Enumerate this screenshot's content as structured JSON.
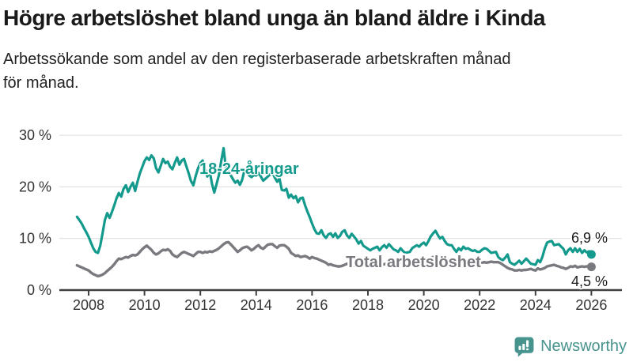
{
  "header": {
    "title": "Högre arbetslöshet bland unga än bland äldre i Kinda",
    "subtitle_line1": "Arbetssökande som andel av den registerbaserade arbetskraften månad",
    "subtitle_line2": "för månad."
  },
  "chart_data": {
    "type": "line",
    "title": "Högre arbetslöshet bland unga än bland äldre i Kinda",
    "subtitle": "Arbetssökande som andel av den registerbaserade arbetskraften månad för månad.",
    "x_start_decimal_year": 2007.5833,
    "x_step_months": 1,
    "x_end_decimal_year": 2026.0,
    "xlim": [
      2006.95,
      2027.1
    ],
    "ylim": [
      0,
      30
    ],
    "grid": "horizontal",
    "grid_color": "#dcdcdc",
    "axis_color": "#404040",
    "tick_label_color": "#333333",
    "x_ticks": [
      {
        "value": 2008,
        "label": "2008"
      },
      {
        "value": 2010,
        "label": "2010"
      },
      {
        "value": 2012,
        "label": "2012"
      },
      {
        "value": 2014,
        "label": "2014"
      },
      {
        "value": 2016,
        "label": "2016"
      },
      {
        "value": 2018,
        "label": "2018"
      },
      {
        "value": 2020,
        "label": "2020"
      },
      {
        "value": 2022,
        "label": "2022"
      },
      {
        "value": 2024,
        "label": "2024"
      },
      {
        "value": 2026,
        "label": "2026"
      }
    ],
    "y_ticks": [
      {
        "value": 0,
        "label": "0 %"
      },
      {
        "value": 10,
        "label": "10 %"
      },
      {
        "value": 20,
        "label": "20 %"
      },
      {
        "value": 30,
        "label": "30 %"
      }
    ],
    "series": [
      {
        "name": "18-24-åringar",
        "color": "#149a8d",
        "end_value": 6.9,
        "end_label": "6,9 %",
        "values": [
          14.2,
          13.6,
          12.9,
          12.0,
          11.2,
          10.3,
          9.2,
          8.1,
          7.4,
          7.2,
          8.6,
          11.0,
          13.6,
          14.9,
          14.0,
          15.1,
          16.4,
          17.8,
          18.8,
          18.1,
          19.6,
          20.3,
          19.0,
          20.0,
          20.8,
          19.2,
          21.0,
          22.6,
          23.8,
          25.0,
          25.7,
          25.2,
          26.1,
          25.5,
          23.6,
          22.8,
          24.1,
          25.4,
          24.6,
          24.9,
          23.9,
          23.4,
          24.6,
          25.7,
          24.3,
          25.1,
          25.4,
          24.0,
          22.6,
          21.1,
          20.3,
          22.1,
          23.6,
          24.6,
          25.1,
          23.6,
          22.0,
          23.1,
          20.6,
          18.9,
          20.6,
          22.3,
          25.1,
          27.5,
          23.4,
          23.0,
          22.3,
          21.5,
          20.8,
          21.2,
          20.4,
          21.4,
          23.3,
          23.0,
          22.2,
          21.9,
          22.3,
          22.2,
          22.7,
          22.0,
          21.2,
          21.6,
          22.0,
          22.4,
          22.7,
          21.8,
          21.0,
          21.6,
          19.4,
          19.3,
          19.6,
          17.9,
          18.5,
          17.8,
          18.2,
          17.0,
          17.8,
          17.9,
          16.4,
          15.2,
          14.1,
          12.9,
          11.8,
          11.0,
          10.9,
          11.6,
          10.6,
          10.1,
          10.8,
          11.0,
          10.3,
          11.0,
          10.1,
          10.5,
          11.3,
          11.6,
          10.6,
          10.1,
          10.9,
          10.4,
          9.8,
          9.0,
          9.5,
          8.6,
          8.3,
          8.0,
          7.7,
          8.0,
          8.2,
          8.4,
          7.7,
          8.3,
          8.7,
          8.2,
          8.9,
          8.4,
          7.9,
          7.7,
          7.4,
          8.1,
          7.6,
          7.2,
          7.3,
          7.4,
          8.1,
          8.4,
          8.7,
          8.4,
          8.9,
          9.2,
          8.7,
          9.5,
          10.4,
          11.0,
          11.5,
          10.7,
          10.0,
          10.3,
          9.5,
          8.9,
          8.7,
          8.7,
          8.0,
          7.4,
          8.1,
          7.7,
          8.4,
          8.0,
          8.1,
          7.8,
          7.6,
          7.7,
          7.4,
          7.4,
          7.8,
          8.1,
          8.0,
          7.6,
          7.2,
          7.3,
          7.4,
          6.4,
          6.0,
          5.8,
          6.3,
          6.9,
          5.4,
          5.1,
          4.9,
          5.3,
          5.7,
          5.1,
          5.6,
          6.1,
          5.6,
          5.1,
          5.0,
          4.9,
          5.8,
          5.4,
          6.5,
          8.1,
          9.2,
          9.4,
          9.5,
          8.7,
          8.8,
          8.9,
          8.4,
          8.0,
          6.9,
          7.7,
          8.1,
          7.4,
          8.1,
          7.4,
          8.0,
          7.2,
          7.7,
          7.3,
          7.5,
          6.9
        ]
      },
      {
        "name": "Total arbetslöshet",
        "color": "#797980",
        "end_value": 4.5,
        "end_label": "4,5 %",
        "values": [
          4.8,
          4.6,
          4.4,
          4.2,
          4.0,
          3.8,
          3.4,
          3.1,
          2.9,
          2.7,
          2.8,
          3.0,
          3.3,
          3.7,
          4.1,
          4.5,
          5.0,
          5.6,
          6.1,
          6.0,
          6.2,
          6.4,
          6.3,
          6.6,
          6.8,
          6.7,
          6.9,
          7.4,
          7.9,
          8.3,
          8.6,
          8.2,
          7.8,
          7.2,
          6.9,
          7.1,
          7.5,
          7.8,
          7.7,
          7.9,
          7.6,
          6.9,
          6.6,
          6.4,
          6.8,
          7.2,
          7.4,
          7.2,
          7.0,
          6.8,
          6.6,
          7.0,
          7.4,
          7.4,
          7.2,
          7.4,
          7.3,
          7.5,
          7.4,
          7.6,
          7.8,
          8.1,
          8.5,
          8.9,
          9.2,
          9.3,
          8.9,
          8.4,
          7.9,
          7.4,
          7.7,
          8.1,
          8.3,
          8.4,
          8.1,
          7.7,
          8.0,
          8.4,
          8.7,
          8.2,
          8.0,
          8.4,
          8.8,
          8.9,
          8.9,
          8.5,
          8.2,
          8.6,
          8.7,
          8.7,
          8.4,
          8.0,
          7.2,
          6.9,
          6.6,
          6.7,
          6.4,
          6.5,
          6.6,
          6.4,
          6.1,
          6.4,
          6.2,
          6.1,
          5.9,
          5.7,
          5.5,
          5.3,
          4.9,
          5.0,
          4.8,
          4.7,
          4.6,
          4.6,
          4.7,
          4.9,
          5.1,
          4.9,
          4.8,
          4.7,
          4.7,
          4.8,
          4.9,
          4.8,
          4.8,
          4.9,
          5.0,
          5.1,
          5.0,
          4.9,
          4.8,
          4.9,
          5.0,
          5.1,
          5.0,
          4.9,
          4.9,
          5.0,
          5.1,
          5.2,
          5.1,
          5.0,
          5.0,
          5.1,
          5.2,
          5.3,
          5.4,
          5.5,
          5.6,
          5.7,
          5.8,
          6.0,
          6.2,
          6.4,
          6.5,
          6.4,
          6.3,
          6.2,
          6.1,
          6.0,
          5.9,
          5.8,
          5.7,
          5.6,
          5.6,
          5.5,
          5.5,
          5.4,
          5.4,
          5.3,
          5.3,
          5.3,
          5.3,
          5.3,
          5.3,
          5.4,
          5.3,
          5.4,
          5.5,
          5.4,
          5.4,
          5.4,
          5.2,
          4.9,
          4.6,
          4.3,
          4.1,
          4.0,
          3.8,
          3.8,
          3.9,
          3.8,
          3.9,
          3.9,
          4.0,
          4.1,
          3.9,
          3.8,
          4.2,
          4.0,
          4.1,
          4.3,
          4.6,
          4.7,
          4.8,
          4.9,
          4.7,
          4.6,
          4.4,
          4.3,
          4.1,
          4.3,
          4.6,
          4.5,
          4.7,
          4.4,
          4.5,
          4.6,
          4.5,
          4.6,
          4.6,
          4.5
        ]
      }
    ],
    "annotations": [
      {
        "text": "18-24-åringar",
        "role": "series-label"
      },
      {
        "text": "Total arbetslöshet",
        "role": "series-label"
      },
      {
        "text": "6,9 %",
        "role": "end-value-label"
      },
      {
        "text": "4,5 %",
        "role": "end-value-label"
      }
    ]
  },
  "footer": {
    "brand": "Newsworthy",
    "brand_color": "#47948e",
    "logo_icon": "speech-bubble-bar-chart-exclamation"
  }
}
